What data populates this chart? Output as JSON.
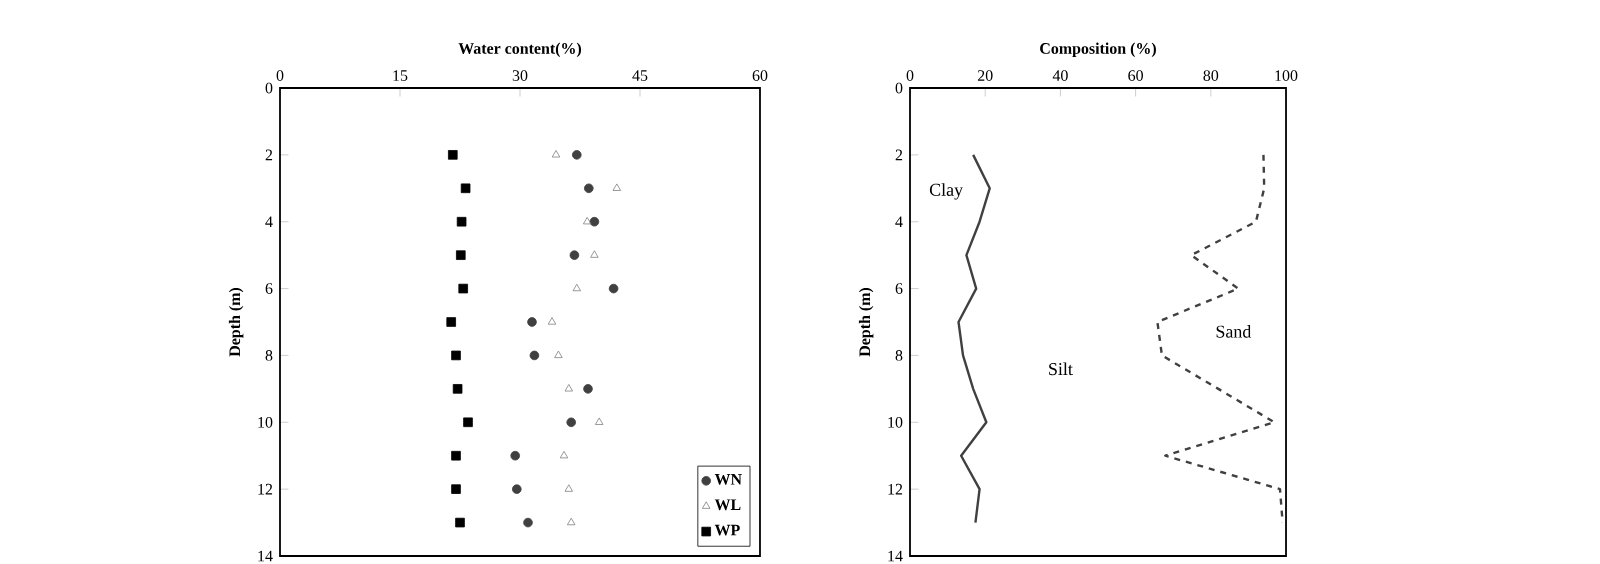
{
  "chart_data": [
    {
      "type": "scatter",
      "xlabel": "Water content(%)",
      "ylabel": "Depth (m)",
      "xlim": [
        0,
        60
      ],
      "xticks": [
        0,
        15,
        30,
        45,
        60
      ],
      "ylim": [
        14,
        0
      ],
      "yticks": [
        0,
        2,
        4,
        6,
        8,
        10,
        12,
        14
      ],
      "legend": "bottom right",
      "grid": false,
      "series": [
        {
          "name": "WN",
          "color": "#404040",
          "marker": "circle",
          "x": [
            37.1,
            38.6,
            39.3,
            36.8,
            41.7,
            31.5,
            31.8,
            38.5,
            36.4,
            29.4,
            29.6,
            31.0
          ],
          "values": [
            2,
            3,
            4,
            5,
            6,
            7,
            8,
            9,
            10,
            11,
            12,
            13
          ]
        },
        {
          "name": "WL",
          "color": "#808080",
          "marker": "triangle",
          "x": [
            34.5,
            42.1,
            38.4,
            39.3,
            37.1,
            34.0,
            34.8,
            36.1,
            39.9,
            35.5,
            36.1,
            36.4
          ],
          "values": [
            2,
            3,
            4,
            5,
            6,
            7,
            8,
            9,
            10,
            11,
            12,
            13
          ]
        },
        {
          "name": "WP",
          "color": "#000000",
          "marker": "square",
          "x": [
            21.6,
            23.2,
            22.7,
            22.6,
            22.9,
            21.4,
            22.0,
            22.2,
            23.5,
            22.0,
            22.0,
            22.5
          ],
          "values": [
            2,
            3,
            4,
            5,
            6,
            7,
            8,
            9,
            10,
            11,
            12,
            13
          ]
        }
      ]
    },
    {
      "type": "line",
      "xlabel": "Composition (%)",
      "ylabel": "Depth (m)",
      "xlim": [
        0,
        100
      ],
      "xticks": [
        0,
        20,
        40,
        60,
        80,
        100
      ],
      "ylim": [
        14,
        0
      ],
      "yticks": [
        0,
        2,
        4,
        6,
        8,
        10,
        12,
        14
      ],
      "grid": false,
      "marker": "none",
      "series": [
        {
          "color": "#404040",
          "line_style": "solid",
          "x": [
            16.8,
            21.2,
            18.5,
            15.0,
            17.6,
            12.9,
            14.1,
            16.8,
            20.3,
            13.6,
            18.5,
            17.4
          ],
          "values": [
            2,
            3,
            4,
            5,
            6,
            7,
            8,
            9,
            10,
            11,
            12,
            13
          ]
        },
        {
          "color": "#404040",
          "line_style": "dashed",
          "x": [
            94.0,
            94.2,
            92.0,
            74.8,
            87.3,
            65.8,
            67.0,
            82.0,
            96.9,
            67.9,
            98.4,
            99.1
          ],
          "values": [
            2,
            3,
            4,
            5,
            6,
            7,
            8,
            9,
            10,
            11,
            12,
            13
          ]
        }
      ],
      "annotations": [
        "Clay",
        "Silt",
        "Sand"
      ]
    }
  ]
}
